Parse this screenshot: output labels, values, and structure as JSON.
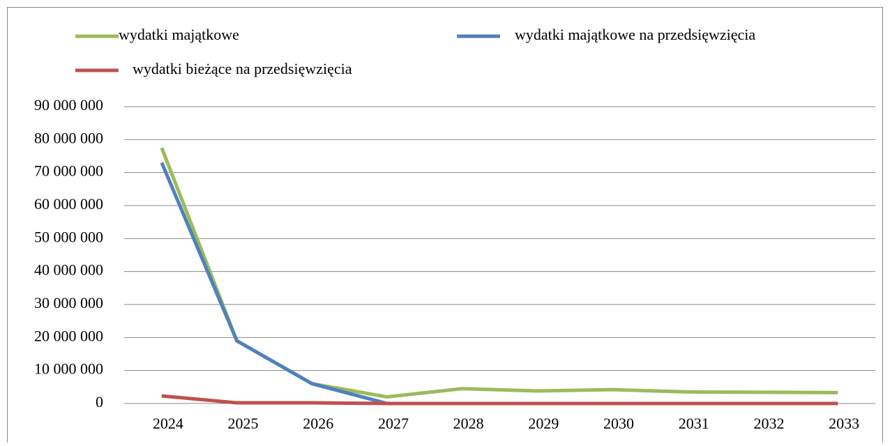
{
  "chart_data": {
    "type": "line",
    "categories": [
      "2024",
      "2025",
      "2026",
      "2027",
      "2028",
      "2029",
      "2030",
      "2031",
      "2032",
      "2033"
    ],
    "series": [
      {
        "name": "wydatki majątkowe",
        "color": "#9bbb59",
        "values": [
          77500000,
          19000000,
          6000000,
          2000000,
          4500000,
          3800000,
          4200000,
          3500000,
          3400000,
          3300000
        ]
      },
      {
        "name": "wydatki majątkowe na przedsięwzięcia",
        "color": "#4f81bd",
        "values": [
          73000000,
          19000000,
          6000000,
          0,
          0,
          0,
          0,
          0,
          0,
          0
        ]
      },
      {
        "name": "wydatki bieżące na przedsięwzięcia",
        "color": "#c0504d",
        "values": [
          2300000,
          200000,
          200000,
          0,
          0,
          0,
          0,
          0,
          0,
          0
        ]
      }
    ],
    "ylim": [
      0,
      90000000
    ],
    "yticks": [
      0,
      {
        "value": 10000000,
        "label": "10 000 000"
      },
      {
        "value": 20000000,
        "label": "20 000 000"
      },
      {
        "value": 30000000,
        "label": "30 000 000"
      },
      {
        "value": 40000000,
        "label": "40 000 000"
      },
      {
        "value": 50000000,
        "label": "50 000 000"
      },
      {
        "value": 60000000,
        "label": "60 000 000"
      },
      {
        "value": 70000000,
        "label": "70 000 000"
      },
      {
        "value": 80000000,
        "label": "80 000 000"
      },
      {
        "value": 90000000,
        "label": "90 000 000"
      }
    ],
    "grid": true
  }
}
